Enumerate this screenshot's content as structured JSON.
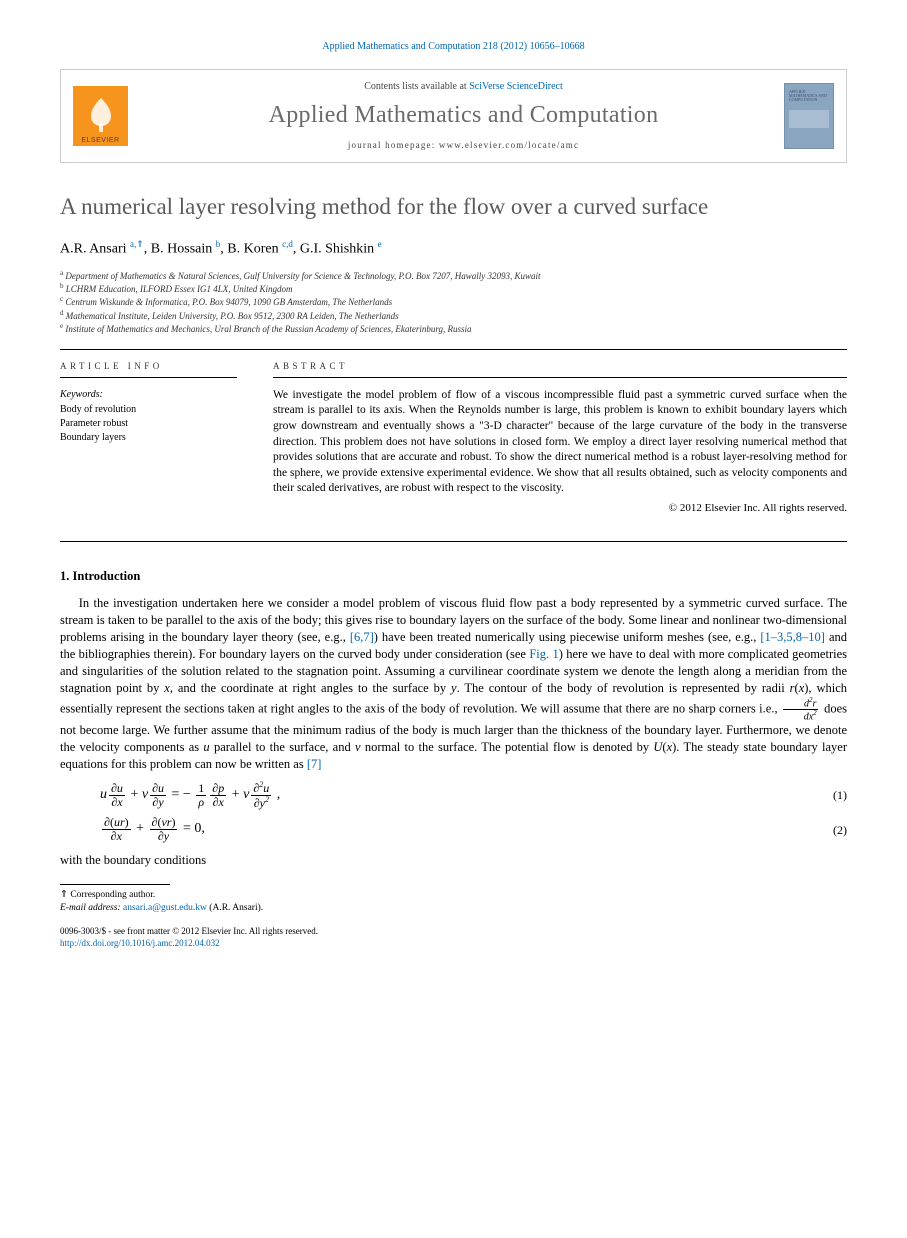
{
  "header": {
    "citation": "Applied Mathematics and Computation 218 (2012) 10656–10668",
    "contents_prefix": "Contents lists available at ",
    "contents_link": "SciVerse ScienceDirect",
    "journal_name": "Applied Mathematics and Computation",
    "homepage_label": "journal homepage: www.elsevier.com/locate/amc",
    "elsevier_label": "ELSEVIER",
    "cover_mini_text": "APPLIED MATHEMATICS AND COMPUTATION"
  },
  "paper": {
    "title": "A numerical layer resolving method for the flow over a curved surface",
    "authors_html": "A.R. Ansari <sup class=\"author-link\">a,</sup><sup>⇑</sup>, B. Hossain <sup class=\"author-link\">b</sup>, B. Koren <sup class=\"author-link\">c,d</sup>, G.I. Shishkin <sup class=\"author-link\">e</sup>",
    "affiliations": [
      {
        "sup": "a",
        "text": "Department of Mathematics & Natural Sciences, Gulf University for Science & Technology, P.O. Box 7207, Hawally 32093, Kuwait"
      },
      {
        "sup": "b",
        "text": "LCHRM Education, ILFORD Essex IG1 4LX, United Kingdom"
      },
      {
        "sup": "c",
        "text": "Centrum Wiskunde & Informatica, P.O. Box 94079, 1090 GB Amsterdam, The Netherlands"
      },
      {
        "sup": "d",
        "text": "Mathematical Institute, Leiden University, P.O. Box 9512, 2300 RA Leiden, The Netherlands"
      },
      {
        "sup": "e",
        "text": "Institute of Mathematics and Mechanics, Ural Branch of the Russian Academy of Sciences, Ekaterinburg, Russia"
      }
    ]
  },
  "article_info": {
    "heading": "ARTICLE INFO",
    "keywords_label": "Keywords:",
    "keywords": [
      "Body of revolution",
      "Parameter robust",
      "Boundary layers"
    ]
  },
  "abstract": {
    "heading": "ABSTRACT",
    "text": "We investigate the model problem of flow of a viscous incompressible fluid past a symmetric curved surface when the stream is parallel to its axis. When the Reynolds number is large, this problem is known to exhibit boundary layers which grow downstream and eventually shows a \"3-D character\" because of the large curvature of the body in the transverse direction. This problem does not have solutions in closed form. We employ a direct layer resolving numerical method that provides solutions that are accurate and robust. To show the direct numerical method is a robust layer-resolving method for the sphere, we provide extensive experimental evidence. We show that all results obtained, such as velocity components and their scaled derivatives, are robust with respect to the viscosity.",
    "copyright": "© 2012 Elsevier Inc. All rights reserved."
  },
  "section1": {
    "heading": "1. Introduction",
    "para": "In the investigation undertaken here we consider a model problem of viscous fluid flow past a body represented by a symmetric curved surface. The stream is taken to be parallel to the axis of the body; this gives rise to boundary layers on the surface of the body. Some linear and nonlinear two-dimensional problems arising in the boundary layer theory (see, e.g., [6,7]) have been treated numerically using piecewise uniform meshes (see, e.g., [1–3,5,8–10] and the bibliographies therein). For boundary layers on the curved body under consideration (see Fig. 1) here we have to deal with more complicated geometries and singularities of the solution related to the stagnation point. Assuming a curvilinear coordinate system we denote the length along a meridian from the stagnation point by x, and the coordinate at right angles to the surface by y. The contour of the body of revolution is represented by radii r(x), which essentially represent the sections taken at right angles to the axis of the body of revolution. We will assume that there are no sharp corners i.e., d²r/dx² does not become large. We further assume that the minimum radius of the body is much larger than the thickness of the boundary layer. Furthermore, we denote the velocity components as u parallel to the surface, and v normal to the surface. The potential flow is denoted by U(x). The steady state boundary layer equations for this problem can now be written as [7]",
    "refs": {
      "r67": "[6,7]",
      "r1_10": "[1–3,5,8–10]",
      "fig1": "Fig. 1",
      "r7": "[7]"
    },
    "eq1_num": "(1)",
    "eq2_num": "(2)",
    "after_eq": "with the boundary conditions"
  },
  "footnotes": {
    "corr": "⇑ Corresponding author.",
    "email_label": "E-mail address:",
    "email": "ansari.a@gust.edu.kw",
    "email_author": "(A.R. Ansari)."
  },
  "bottom": {
    "line1": "0096-3003/$ - see front matter © 2012 Elsevier Inc. All rights reserved.",
    "doi": "http://dx.doi.org/10.1016/j.amc.2012.04.032"
  },
  "colors": {
    "link": "#0066b3",
    "title_gray": "#5a5a5a",
    "elsevier_orange": "#f7941e",
    "cover_bg": "#8aa5c0"
  }
}
